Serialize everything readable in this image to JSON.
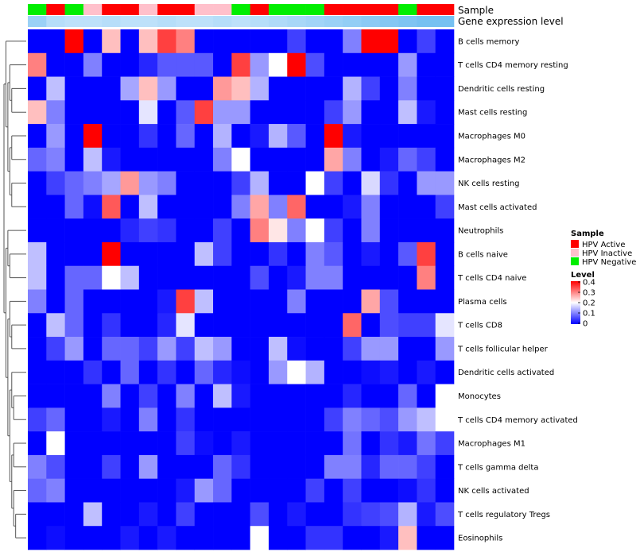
{
  "chart_data": {
    "type": "heatmap",
    "title": "",
    "annotation_labels": {
      "sample": "Sample",
      "expression": "Gene expression level"
    },
    "sample_groups": [
      "HPV Negative",
      "HPV Active",
      "HPV Negative",
      "HPV Inactive",
      "HPV Active",
      "HPV Active",
      "HPV Inactive",
      "HPV Active",
      "HPV Active",
      "HPV Inactive",
      "HPV Inactive",
      "HPV Negative",
      "HPV Active",
      "HPV Negative",
      "HPV Negative",
      "HPV Negative",
      "HPV Active",
      "HPV Active",
      "HPV Active",
      "HPV Active",
      "HPV Negative",
      "HPV Active",
      "HPV Active"
    ],
    "expression_level": [
      0.55,
      0.35,
      0.3,
      0.3,
      0.35,
      0.3,
      0.3,
      0.35,
      0.3,
      0.3,
      0.35,
      0.3,
      0.35,
      0.4,
      0.45,
      0.5,
      0.55,
      0.6,
      0.65,
      0.7,
      0.75,
      0.8,
      0.8
    ],
    "rows": [
      "B cells memory",
      "T cells CD4 memory resting",
      "Dendritic cells resting",
      "Mast cells resting",
      "Macrophages M0",
      "Macrophages M2",
      "NK cells resting",
      "Mast cells activated",
      "Neutrophils",
      "B cells naive",
      "T cells CD4 naive",
      "Plasma cells",
      "T cells CD8",
      "T cells follicular helper",
      "Dendritic cells activated",
      "Monocytes",
      "T cells CD4 memory activated",
      "Macrophages M1",
      "T cells gamma delta",
      "NK cells activated",
      "T cells regulatory  Tregs",
      "Eosinophils"
    ],
    "values": [
      [
        0,
        0,
        0.4,
        0,
        0.25,
        0,
        0.25,
        0.35,
        0.3,
        0,
        0,
        0,
        0,
        0,
        0.05,
        0,
        0,
        0.1,
        0.4,
        0.4,
        0,
        0.05,
        0
      ],
      [
        0.3,
        0,
        0,
        0.1,
        0,
        0,
        0.03,
        0.07,
        0.07,
        0.07,
        0,
        0.35,
        0.12,
        0.2,
        0.4,
        0.06,
        0,
        0,
        0,
        0,
        0.12,
        0,
        0
      ],
      [
        0,
        0.15,
        0,
        0,
        0,
        0.13,
        0.25,
        0.12,
        0,
        0,
        0.28,
        0.25,
        0.14,
        0,
        0,
        0,
        0,
        0.14,
        0.05,
        0,
        0.1,
        0,
        0
      ],
      [
        0.25,
        0.1,
        0,
        0,
        0,
        0,
        0.18,
        0,
        0.07,
        0.35,
        0.12,
        0.12,
        0,
        0,
        0,
        0,
        0.05,
        0.12,
        0,
        0,
        0.15,
        0.02,
        0
      ],
      [
        0,
        0.12,
        0,
        0.4,
        0,
        0,
        0.04,
        0,
        0.08,
        0,
        0.14,
        0,
        0.02,
        0.14,
        0.07,
        0,
        0.4,
        0.02,
        0,
        0,
        0,
        0,
        0
      ],
      [
        0.08,
        0.1,
        0,
        0.15,
        0.02,
        0,
        0,
        0,
        0,
        0,
        0.1,
        0.2,
        0,
        0,
        0,
        0,
        0.27,
        0.1,
        0,
        0.02,
        0.08,
        0.05,
        0
      ],
      [
        0,
        0.05,
        0.08,
        0.1,
        0.13,
        0.28,
        0.12,
        0.1,
        0,
        0,
        0,
        0.05,
        0.14,
        0,
        0,
        0.2,
        0.05,
        0,
        0.17,
        0.04,
        0,
        0.12,
        0.12
      ],
      [
        0,
        0,
        0.08,
        0.01,
        0.33,
        0,
        0.15,
        0,
        0,
        0,
        0,
        0.1,
        0.27,
        0.1,
        0.32,
        0,
        0,
        0.02,
        0.1,
        0,
        0,
        0,
        0.05
      ],
      [
        0,
        0,
        0,
        0,
        0,
        0.03,
        0.05,
        0.04,
        0,
        0,
        0.05,
        0,
        0.3,
        0.22,
        0.1,
        0.2,
        0.05,
        0,
        0.1,
        0,
        0,
        0,
        0
      ],
      [
        0.15,
        0,
        0,
        0,
        0.4,
        0,
        0,
        0,
        0,
        0.15,
        0.05,
        0,
        0,
        0.04,
        0,
        0.1,
        0.07,
        0,
        0.02,
        0,
        0.07,
        0.35,
        0
      ],
      [
        0.15,
        0,
        0.08,
        0.08,
        0.2,
        0.15,
        0,
        0,
        0,
        0,
        0,
        0,
        0.06,
        0,
        0.02,
        0.1,
        0.1,
        0,
        0,
        0,
        0,
        0.3,
        0
      ],
      [
        0.1,
        0,
        0.08,
        0,
        0,
        0,
        0,
        0.02,
        0.35,
        0.15,
        0,
        0,
        0,
        0,
        0.1,
        0,
        0,
        0,
        0.27,
        0.06,
        0,
        0,
        0
      ],
      [
        0,
        0.15,
        0.08,
        0,
        0.04,
        0,
        0,
        0.03,
        0.18,
        0,
        0,
        0,
        0,
        0,
        0,
        0,
        0,
        0.32,
        0,
        0.06,
        0.05,
        0.05,
        0.18
      ],
      [
        0,
        0.05,
        0.12,
        0,
        0.08,
        0.08,
        0.05,
        0.12,
        0.05,
        0.15,
        0.12,
        0,
        0,
        0.15,
        0.01,
        0,
        0,
        0.05,
        0.12,
        0.12,
        0,
        0,
        0.12
      ],
      [
        0,
        0,
        0,
        0.04,
        0,
        0.08,
        0,
        0.04,
        0,
        0.08,
        0.03,
        0.01,
        0,
        0.12,
        0.2,
        0.14,
        0,
        0,
        0.01,
        0.02,
        0,
        0.02,
        0
      ],
      [
        0,
        0,
        0,
        0,
        0.1,
        0,
        0.05,
        0,
        0.1,
        0,
        0.15,
        0.02,
        0,
        0,
        0,
        0,
        0,
        0.03,
        0,
        0,
        0.08,
        0,
        0.2
      ],
      [
        0.05,
        0.08,
        0,
        0,
        0.02,
        0,
        0.1,
        0,
        0.04,
        0,
        0,
        0,
        0,
        0,
        0,
        0,
        0.05,
        0.1,
        0.08,
        0.06,
        0.12,
        0.15,
        0.2
      ],
      [
        0,
        0.2,
        0,
        0,
        0,
        0,
        0,
        0,
        0.05,
        0.01,
        0,
        0.02,
        0,
        0,
        0,
        0,
        0,
        0.09,
        0,
        0.04,
        0.02,
        0.09,
        0.05
      ],
      [
        0.1,
        0.06,
        0,
        0,
        0.05,
        0,
        0.12,
        0,
        0,
        0,
        0.08,
        0.04,
        0,
        0,
        0,
        0,
        0.1,
        0.1,
        0.03,
        0.08,
        0.08,
        0.05,
        0
      ],
      [
        0.08,
        0.1,
        0,
        0,
        0,
        0,
        0,
        0,
        0.02,
        0.12,
        0.08,
        0,
        0,
        0,
        0,
        0.05,
        0,
        0.05,
        0,
        0,
        0.01,
        0.04,
        0
      ],
      [
        0,
        0,
        0,
        0.15,
        0,
        0,
        0.02,
        0,
        0.05,
        0,
        0,
        0,
        0.06,
        0,
        0.02,
        0,
        0,
        0.04,
        0.05,
        0.06,
        0.14,
        0.02,
        0.06
      ],
      [
        0,
        0.01,
        0,
        0,
        0,
        0.02,
        0,
        0.02,
        0,
        0,
        0,
        0,
        0.2,
        0,
        0,
        0.04,
        0.04,
        0,
        0,
        0.02,
        0.25,
        0,
        0
      ]
    ],
    "color_scale": {
      "min": 0,
      "max": 0.4,
      "low": "#0000ff",
      "mid": "#ffffff",
      "high": "#ff0000",
      "mid_value": 0.2
    },
    "sample_colors": {
      "HPV Active": "#ff0000",
      "HPV Inactive": "#ffc0cb",
      "HPV Negative": "#00ee00"
    },
    "expression_colors": {
      "low": "#e8f4ff",
      "high": "#5ab4ee"
    },
    "legend": {
      "sample_title": "Sample",
      "sample_entries": [
        "HPV Active",
        "HPV Inactive",
        "HPV Negative"
      ],
      "level_title": "Level",
      "level_ticks": [
        "0.4",
        "0.3",
        "0.2",
        "0.1",
        "0"
      ],
      "position": "right"
    },
    "dendrogram": "rows"
  }
}
